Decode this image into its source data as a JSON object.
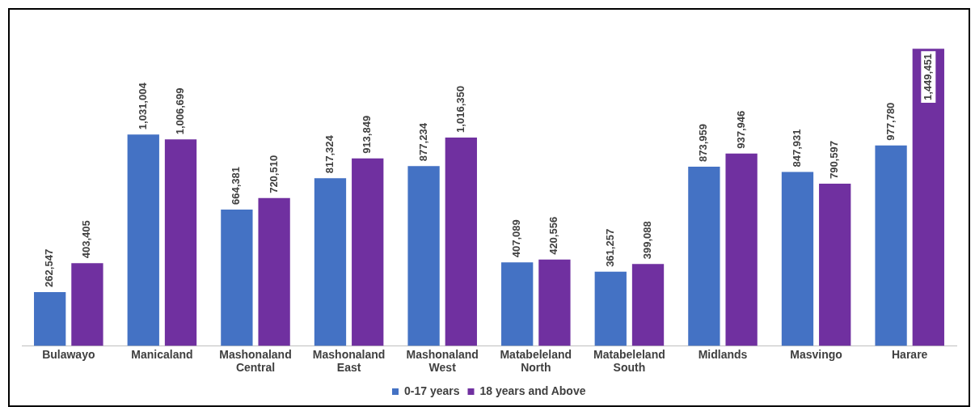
{
  "chart_data": {
    "type": "bar",
    "categories": [
      "Bulawayo",
      "Manicaland",
      "Mashonaland Central",
      "Mashonaland East",
      "Mashonaland West",
      "Matabeleland North",
      "Matabeleland South",
      "Midlands",
      "Masvingo",
      "Harare"
    ],
    "series": [
      {
        "name": "0-17 years",
        "color": "#4472c4",
        "values": [
          262547,
          1031004,
          664381,
          817324,
          877234,
          407089,
          361257,
          873959,
          847931,
          977780
        ],
        "value_labels": [
          "262,547",
          "1,031,004",
          "664,381",
          "817,324",
          "877,234",
          "407,089",
          "361,257",
          "873,959",
          "847,931",
          "977,780"
        ]
      },
      {
        "name": "18 years and Above",
        "color": "#7030a0",
        "values": [
          403405,
          1006699,
          720510,
          913849,
          1016350,
          420556,
          399088,
          937946,
          790597,
          1449451
        ],
        "value_labels": [
          "403,405",
          "1,006,699",
          "720,510",
          "913,849",
          "1,016,350",
          "420,556",
          "399,088",
          "937,946",
          "790,597",
          "1,449,451"
        ]
      }
    ],
    "legend": "bottom",
    "grid": false
  }
}
